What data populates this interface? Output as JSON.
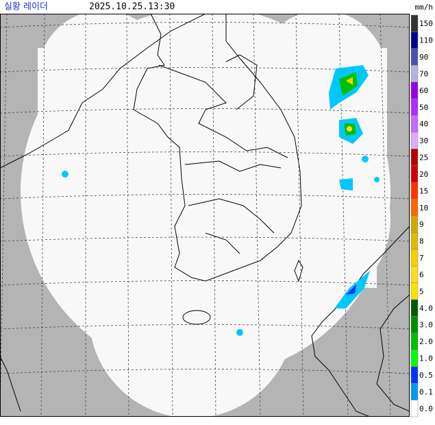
{
  "header": {
    "title": "실황 레이더",
    "time": "2025.10.25.13:30"
  },
  "legend": {
    "unit": "mm/h",
    "items": [
      {
        "label": "150",
        "color": "#333333"
      },
      {
        "label": "110",
        "color": "#000390"
      },
      {
        "label": "90",
        "color": "#4c4eb1"
      },
      {
        "label": "70",
        "color": "#b3b4de"
      },
      {
        "label": "60",
        "color": "#9300e4"
      },
      {
        "label": "50",
        "color": "#b329ff"
      },
      {
        "label": "40",
        "color": "#c969ff"
      },
      {
        "label": "30",
        "color": "#e0a9ff"
      },
      {
        "label": "25",
        "color": "#b40000"
      },
      {
        "label": "20",
        "color": "#d20000"
      },
      {
        "label": "15",
        "color": "#ff3300"
      },
      {
        "label": "10",
        "color": "#ff6600"
      },
      {
        "label": "9",
        "color": "#ccaa00"
      },
      {
        "label": "8",
        "color": "#e0b900"
      },
      {
        "label": "7",
        "color": "#f9cd00"
      },
      {
        "label": "6",
        "color": "#ffdc1f"
      },
      {
        "label": "5",
        "color": "#ffe100"
      },
      {
        "label": "4.0",
        "color": "#005a00"
      },
      {
        "label": "3.0",
        "color": "#008c00"
      },
      {
        "label": "2.0",
        "color": "#00be00"
      },
      {
        "label": "1.0",
        "color": "#00ff00"
      },
      {
        "label": "0.5",
        "color": "#0033f5"
      },
      {
        "label": "0.1",
        "color": "#009bf5"
      },
      {
        "label": "0.0",
        "color": "#ffffff"
      }
    ]
  }
}
